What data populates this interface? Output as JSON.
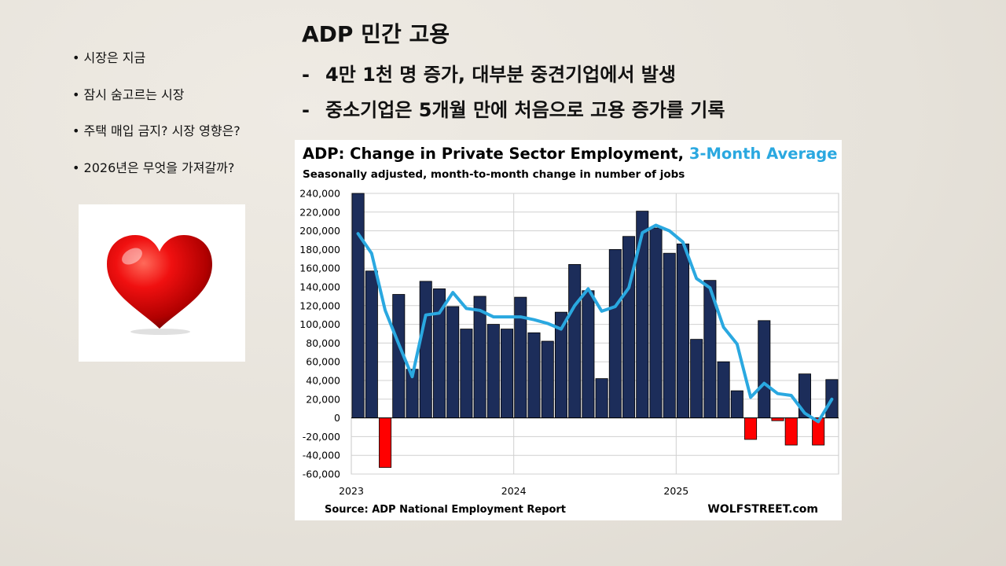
{
  "sidebar": {
    "bullets": [
      "시장은 지금",
      "잠시 숨고르는 시장",
      "주택 매입 금지? 시장 영향은?",
      "2026년은 무엇을 가져갈까?"
    ]
  },
  "slide": {
    "title": "ADP 민간 고용",
    "points": [
      {
        "dash": "-",
        "text": "4만 1천 명 증가, 대부분 중견기업에서 발생"
      },
      {
        "dash": "-",
        "text": "중소기업은 5개월 만에 처음으로 고용 증가를 기록"
      }
    ]
  },
  "chart_data": {
    "type": "bar",
    "title": "ADP: Change in Private Sector Employment, ",
    "title_accent": "3-Month Average",
    "subtitle": "Seasonally adjusted, month-to-month change in number of jobs",
    "ylim": [
      -60000,
      240000
    ],
    "y_ticks": [
      "240,000",
      "220,000",
      "200,000",
      "180,000",
      "160,000",
      "140,000",
      "120,000",
      "100,000",
      "80,000",
      "60,000",
      "40,000",
      "20,000",
      "0",
      "-20,000",
      "-40,000",
      "-60,000"
    ],
    "x_ticks": [
      "2023",
      "2024",
      "2025"
    ],
    "months": [
      "2023-01",
      "2023-02",
      "2023-03",
      "2023-04",
      "2023-05",
      "2023-06",
      "2023-07",
      "2023-08",
      "2023-09",
      "2023-10",
      "2023-11",
      "2023-12",
      "2024-01",
      "2024-02",
      "2024-03",
      "2024-04",
      "2024-05",
      "2024-06",
      "2024-07",
      "2024-08",
      "2024-09",
      "2024-10",
      "2024-11",
      "2024-12",
      "2025-01",
      "2025-02",
      "2025-03",
      "2025-04",
      "2025-05",
      "2025-06",
      "2025-07",
      "2025-08",
      "2025-09",
      "2025-10",
      "2025-11",
      "2025-12"
    ],
    "series": [
      {
        "name": "Monthly change",
        "kind": "bar",
        "values": [
          240000,
          157000,
          -53000,
          132000,
          52000,
          146000,
          138000,
          119000,
          95000,
          130000,
          100000,
          95000,
          129000,
          91000,
          82000,
          113000,
          164000,
          136000,
          42000,
          180000,
          194000,
          221000,
          203000,
          176000,
          186000,
          84000,
          147000,
          60000,
          29000,
          -23000,
          104000,
          -3000,
          -29000,
          47000,
          -29000,
          41000
        ]
      },
      {
        "name": "3-Month Average",
        "kind": "line",
        "values": [
          197000,
          176000,
          115000,
          79000,
          44000,
          110000,
          112000,
          134000,
          117000,
          115000,
          108000,
          108000,
          108000,
          105000,
          101000,
          95000,
          120000,
          138000,
          114000,
          119000,
          139000,
          198000,
          206000,
          200000,
          188000,
          149000,
          139000,
          97000,
          79000,
          22000,
          37000,
          26000,
          24000,
          5000,
          -4000,
          20000
        ]
      }
    ],
    "colors": {
      "bar_positive": "#1c2d5a",
      "bar_negative": "#ff0000",
      "line": "#2aa8e0",
      "accent": "#2aa8e0"
    },
    "source": "Source: ADP National Employment Report",
    "brand": "WOLFSTREET.com"
  }
}
